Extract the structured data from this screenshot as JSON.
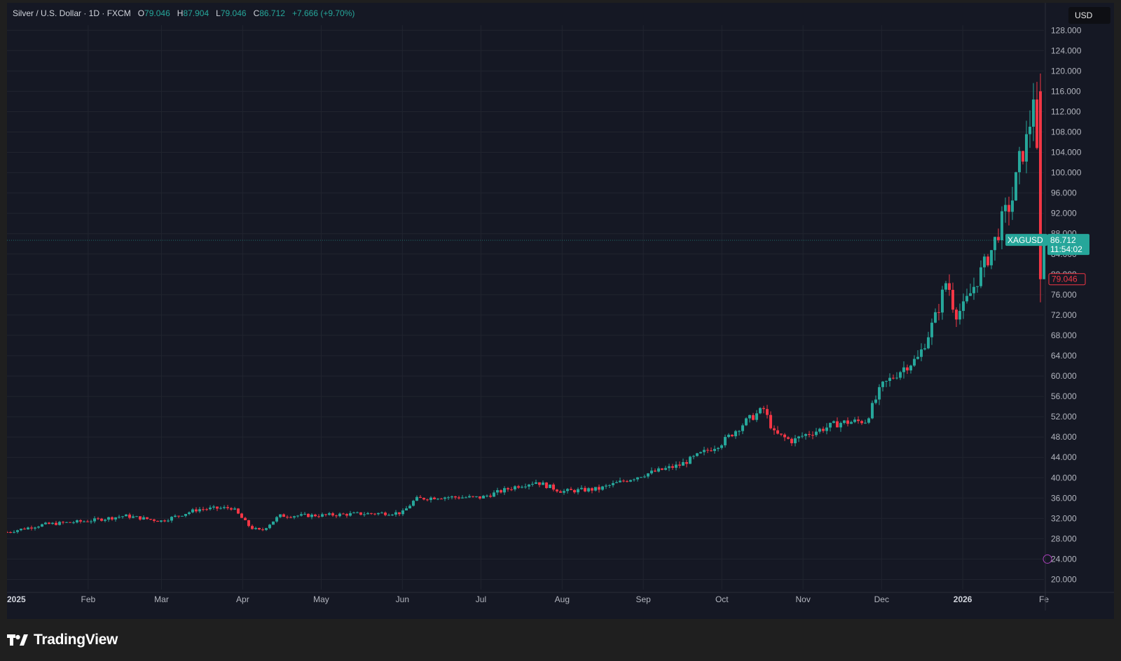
{
  "header": {
    "symbol": "Silver / U.S. Dollar · 1D · FXCM",
    "open_label": "O",
    "open": "79.046",
    "high_label": "H",
    "high": "87.904",
    "low_label": "L",
    "low": "79.046",
    "close_label": "C",
    "close": "86.712",
    "change": "+7.666 (+9.70%)"
  },
  "currency_button": "USD",
  "price_badge": {
    "symbol": "XAGUSD",
    "price": "86.712",
    "countdown": "11:54:02"
  },
  "low_badge": "79.046",
  "footer": {
    "brand": "TradingView"
  },
  "colors": {
    "up": "#26a69a",
    "down": "#f23645",
    "background": "#151824",
    "grid": "#21242f",
    "axis_text": "#b2b5be"
  },
  "chart_data": {
    "type": "candlestick",
    "series_name": "XAGUSD",
    "x_axis_labels": [
      "2025",
      "Feb",
      "Mar",
      "Apr",
      "May",
      "Jun",
      "Jul",
      "Aug",
      "Sep",
      "Oct",
      "Nov",
      "Dec",
      "2026",
      "Fe"
    ],
    "x_axis_label_weight": [
      1,
      0,
      0,
      0,
      0,
      0,
      0,
      0,
      0,
      0,
      0,
      0,
      1,
      0
    ],
    "y_axis_labels": [
      "20.000",
      "24.000",
      "28.000",
      "32.000",
      "36.000",
      "40.000",
      "44.000",
      "48.000",
      "52.000",
      "56.000",
      "60.000",
      "64.000",
      "68.000",
      "72.000",
      "76.000",
      "80.000",
      "84.000",
      "88.000",
      "92.000",
      "96.000",
      "100.000",
      "104.000",
      "108.000",
      "112.000",
      "116.000",
      "120.000",
      "124.000",
      "128.000"
    ],
    "ylim": [
      18,
      129
    ],
    "grid": true,
    "x": [
      "2025-01-01",
      "2025-01-15",
      "2025-02-01",
      "2025-02-15",
      "2025-03-01",
      "2025-03-15",
      "2025-03-28",
      "2025-04-04",
      "2025-04-08",
      "2025-04-15",
      "2025-05-01",
      "2025-05-15",
      "2025-06-01",
      "2025-06-06",
      "2025-06-15",
      "2025-07-01",
      "2025-07-15",
      "2025-07-22",
      "2025-08-01",
      "2025-08-15",
      "2025-09-01",
      "2025-09-15",
      "2025-10-01",
      "2025-10-10",
      "2025-10-17",
      "2025-10-21",
      "2025-10-28",
      "2025-11-01",
      "2025-11-15",
      "2025-11-25",
      "2025-12-01",
      "2025-12-10",
      "2025-12-15",
      "2025-12-22",
      "2025-12-26",
      "2025-12-29",
      "2026-01-01",
      "2026-01-07",
      "2026-01-12",
      "2026-01-16",
      "2026-01-20",
      "2026-01-23",
      "2026-01-26",
      "2026-01-28",
      "2026-01-29",
      "2026-01-30",
      "2026-02-01"
    ],
    "close": [
      29.3,
      30.8,
      31.5,
      32.5,
      31.5,
      33.8,
      34.1,
      30.2,
      29.5,
      32.5,
      32.6,
      32.9,
      33.1,
      35.8,
      36.2,
      36.1,
      38.4,
      39.2,
      37.3,
      37.8,
      40.6,
      42.5,
      46.9,
      51.0,
      53.5,
      48.7,
      47.2,
      48.3,
      50.8,
      51.2,
      57.9,
      61.9,
      63.5,
      72.1,
      79.2,
      72.3,
      73.2,
      79.5,
      84.8,
      90.5,
      94.9,
      103.0,
      107.0,
      116.0,
      114.0,
      79.046,
      86.712
    ]
  }
}
